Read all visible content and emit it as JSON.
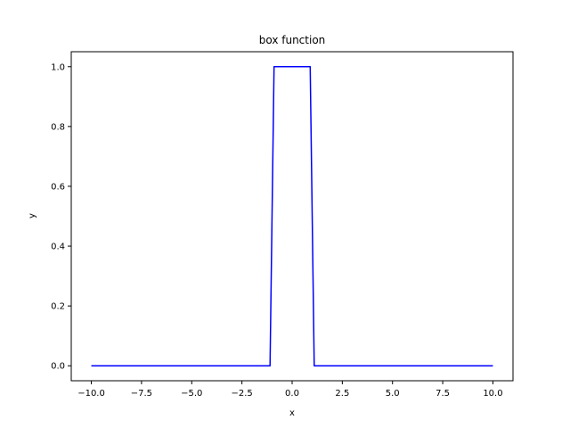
{
  "chart_data": {
    "type": "line",
    "title": "box function",
    "xlabel": "x",
    "ylabel": "y",
    "xlim": [
      -11.0,
      11.0
    ],
    "ylim": [
      -0.05,
      1.05
    ],
    "xticks": [
      -10.0,
      -7.5,
      -5.0,
      -2.5,
      0.0,
      2.5,
      5.0,
      7.5,
      10.0
    ],
    "xtick_labels": [
      "−10.0",
      "−7.5",
      "−5.0",
      "−2.5",
      "0.0",
      "2.5",
      "5.0",
      "7.5",
      "10.0"
    ],
    "yticks": [
      0.0,
      0.2,
      0.4,
      0.6,
      0.8,
      1.0
    ],
    "ytick_labels": [
      "0.0",
      "0.2",
      "0.4",
      "0.6",
      "0.8",
      "1.0"
    ],
    "grid": false,
    "series": [
      {
        "color": "#0000ff",
        "x": [
          -10.0,
          -1.1,
          -0.9,
          0.9,
          1.1,
          10.0
        ],
        "y": [
          0.0,
          0.0,
          1.0,
          1.0,
          0.0,
          0.0
        ]
      }
    ]
  }
}
